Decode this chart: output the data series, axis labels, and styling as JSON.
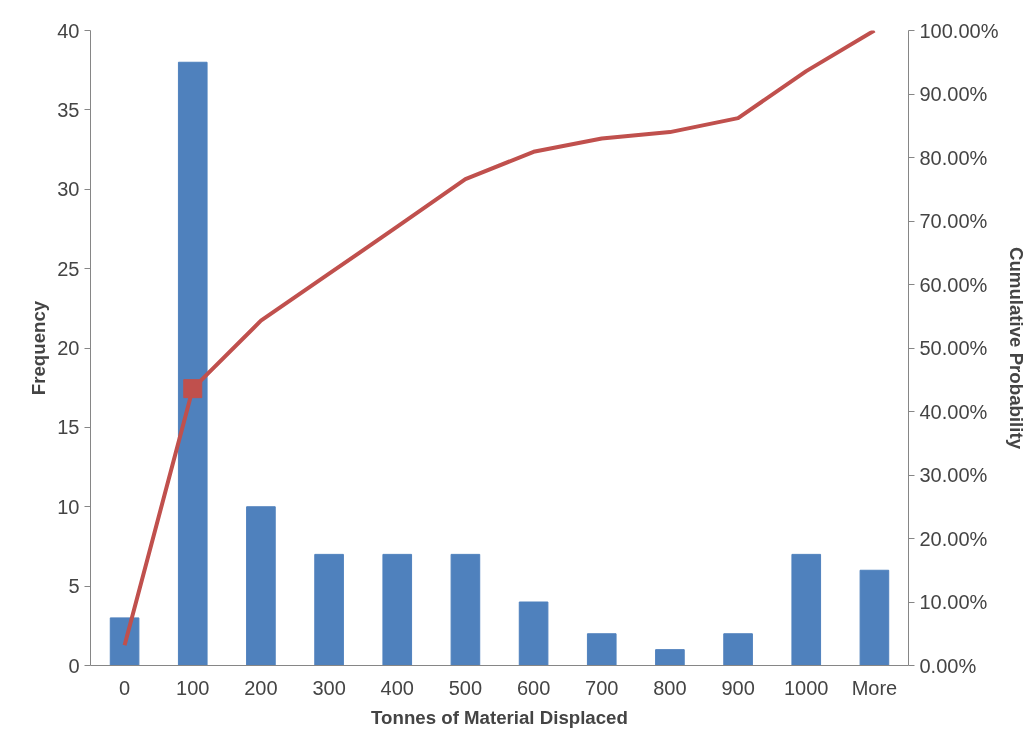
{
  "chart_data": {
    "type": "bar",
    "xlabel": "Tonnes of Material Displaced",
    "ylabel": "Frequency",
    "y2label": "Cumulative Probability",
    "categories": [
      "0",
      "100",
      "200",
      "300",
      "400",
      "500",
      "600",
      "700",
      "800",
      "900",
      "1000",
      "More"
    ],
    "series": [
      {
        "color": "#4f81bd",
        "values": [
          3,
          38,
          10,
          7,
          7,
          7,
          4,
          2,
          1,
          2,
          7,
          6
        ]
      },
      {
        "type": "line",
        "axis": "y2",
        "color": "#c0504d",
        "values": [
          3.2,
          43.6,
          54.3,
          61.7,
          69.1,
          76.6,
          80.9,
          83.0,
          84.0,
          86.2,
          93.6,
          100
        ]
      },
      {
        "type": "scatter",
        "axis": "y2",
        "color": "#c0504d",
        "marker": "square",
        "x": [
          "100"
        ],
        "values": [
          43.6
        ]
      }
    ],
    "ylim": [
      0,
      40
    ],
    "yticks": [
      0,
      5,
      10,
      15,
      20,
      25,
      30,
      35,
      40
    ],
    "y2lim": [
      0,
      100
    ],
    "y2ticks": [
      {
        "value": 0,
        "label": "0.00%"
      },
      {
        "value": 10,
        "label": "10.00%"
      },
      {
        "value": 20,
        "label": "20.00%"
      },
      {
        "value": 30,
        "label": "30.00%"
      },
      {
        "value": 40,
        "label": "40.00%"
      },
      {
        "value": 50,
        "label": "50.00%"
      },
      {
        "value": 60,
        "label": "60.00%"
      },
      {
        "value": 70,
        "label": "70.00%"
      },
      {
        "value": 80,
        "label": "80.00%"
      },
      {
        "value": 90,
        "label": "90.00%"
      },
      {
        "value": 100,
        "label": "100.00%"
      }
    ],
    "grid": false
  }
}
